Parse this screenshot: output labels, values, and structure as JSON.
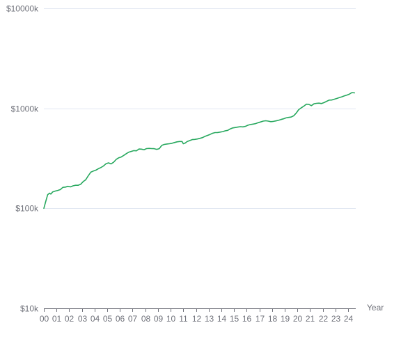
{
  "chart_data": {
    "type": "line",
    "title": "",
    "xlabel": "Year",
    "ylabel": "",
    "y_scale": "log",
    "ylim": [
      10,
      10000
    ],
    "xlim": [
      2000,
      2024.6
    ],
    "grid": true,
    "legend": "none",
    "y_ticks": [
      {
        "value": 10,
        "label": "$10k"
      },
      {
        "value": 100,
        "label": "$100k"
      },
      {
        "value": 1000,
        "label": "$1000k"
      },
      {
        "value": 10000,
        "label": "$10000k"
      }
    ],
    "x_ticks": [
      {
        "value": 2000,
        "label": "00"
      },
      {
        "value": 2001,
        "label": "01"
      },
      {
        "value": 2002,
        "label": "02"
      },
      {
        "value": 2003,
        "label": "03"
      },
      {
        "value": 2004,
        "label": "04"
      },
      {
        "value": 2005,
        "label": "05"
      },
      {
        "value": 2006,
        "label": "06"
      },
      {
        "value": 2007,
        "label": "07"
      },
      {
        "value": 2008,
        "label": "08"
      },
      {
        "value": 2009,
        "label": "09"
      },
      {
        "value": 2010,
        "label": "10"
      },
      {
        "value": 2011,
        "label": "11"
      },
      {
        "value": 2012,
        "label": "12"
      },
      {
        "value": 2013,
        "label": "13"
      },
      {
        "value": 2014,
        "label": "14"
      },
      {
        "value": 2015,
        "label": "15"
      },
      {
        "value": 2016,
        "label": "16"
      },
      {
        "value": 2017,
        "label": "17"
      },
      {
        "value": 2018,
        "label": "18"
      },
      {
        "value": 2019,
        "label": "19"
      },
      {
        "value": 2020,
        "label": "20"
      },
      {
        "value": 2021,
        "label": "21"
      },
      {
        "value": 2022,
        "label": "22"
      },
      {
        "value": 2023,
        "label": "23"
      },
      {
        "value": 2024,
        "label": "24"
      }
    ],
    "series": [
      {
        "color": "#27a85e",
        "points": [
          [
            2000.0,
            100
          ],
          [
            2000.15,
            117
          ],
          [
            2000.3,
            137
          ],
          [
            2000.45,
            142
          ],
          [
            2000.55,
            139
          ],
          [
            2000.7,
            146
          ],
          [
            2000.9,
            149
          ],
          [
            2001.1,
            151
          ],
          [
            2001.3,
            154
          ],
          [
            2001.5,
            162
          ],
          [
            2001.7,
            163
          ],
          [
            2001.9,
            166
          ],
          [
            2002.1,
            164
          ],
          [
            2002.3,
            168
          ],
          [
            2002.5,
            170
          ],
          [
            2002.7,
            170
          ],
          [
            2002.9,
            174
          ],
          [
            2003.1,
            185
          ],
          [
            2003.3,
            193
          ],
          [
            2003.5,
            211
          ],
          [
            2003.7,
            230
          ],
          [
            2003.9,
            236
          ],
          [
            2004.1,
            241
          ],
          [
            2004.3,
            249
          ],
          [
            2004.5,
            256
          ],
          [
            2004.7,
            265
          ],
          [
            2004.9,
            279
          ],
          [
            2005.1,
            285
          ],
          [
            2005.3,
            278
          ],
          [
            2005.5,
            289
          ],
          [
            2005.7,
            308
          ],
          [
            2005.9,
            320
          ],
          [
            2006.1,
            326
          ],
          [
            2006.3,
            338
          ],
          [
            2006.5,
            352
          ],
          [
            2006.7,
            365
          ],
          [
            2006.9,
            371
          ],
          [
            2007.1,
            378
          ],
          [
            2007.3,
            376
          ],
          [
            2007.5,
            392
          ],
          [
            2007.7,
            391
          ],
          [
            2007.9,
            386
          ],
          [
            2008.1,
            396
          ],
          [
            2008.3,
            398
          ],
          [
            2008.5,
            396
          ],
          [
            2008.7,
            395
          ],
          [
            2008.9,
            389
          ],
          [
            2009.1,
            395
          ],
          [
            2009.3,
            426
          ],
          [
            2009.5,
            436
          ],
          [
            2009.7,
            440
          ],
          [
            2009.9,
            443
          ],
          [
            2010.1,
            447
          ],
          [
            2010.3,
            455
          ],
          [
            2010.5,
            462
          ],
          [
            2010.7,
            466
          ],
          [
            2010.9,
            466
          ],
          [
            2011.0,
            443
          ],
          [
            2011.15,
            450
          ],
          [
            2011.3,
            465
          ],
          [
            2011.5,
            476
          ],
          [
            2011.7,
            487
          ],
          [
            2011.9,
            489
          ],
          [
            2012.1,
            494
          ],
          [
            2012.3,
            501
          ],
          [
            2012.5,
            509
          ],
          [
            2012.7,
            524
          ],
          [
            2012.9,
            536
          ],
          [
            2013.1,
            548
          ],
          [
            2013.3,
            563
          ],
          [
            2013.5,
            572
          ],
          [
            2013.7,
            573
          ],
          [
            2013.9,
            579
          ],
          [
            2014.1,
            585
          ],
          [
            2014.3,
            596
          ],
          [
            2014.5,
            602
          ],
          [
            2014.7,
            623
          ],
          [
            2014.9,
            637
          ],
          [
            2015.1,
            643
          ],
          [
            2015.3,
            649
          ],
          [
            2015.5,
            656
          ],
          [
            2015.7,
            653
          ],
          [
            2015.9,
            661
          ],
          [
            2016.1,
            678
          ],
          [
            2016.3,
            689
          ],
          [
            2016.5,
            696
          ],
          [
            2016.7,
            704
          ],
          [
            2016.9,
            718
          ],
          [
            2017.1,
            731
          ],
          [
            2017.3,
            745
          ],
          [
            2017.5,
            752
          ],
          [
            2017.7,
            745
          ],
          [
            2017.9,
            736
          ],
          [
            2018.1,
            741
          ],
          [
            2018.3,
            749
          ],
          [
            2018.5,
            759
          ],
          [
            2018.7,
            773
          ],
          [
            2018.9,
            786
          ],
          [
            2019.1,
            802
          ],
          [
            2019.3,
            811
          ],
          [
            2019.5,
            818
          ],
          [
            2019.7,
            842
          ],
          [
            2019.9,
            895
          ],
          [
            2020.1,
            969
          ],
          [
            2020.3,
            1012
          ],
          [
            2020.5,
            1050
          ],
          [
            2020.7,
            1100
          ],
          [
            2020.9,
            1096
          ],
          [
            2021.1,
            1064
          ],
          [
            2021.3,
            1110
          ],
          [
            2021.5,
            1121
          ],
          [
            2021.7,
            1128
          ],
          [
            2021.9,
            1117
          ],
          [
            2022.1,
            1141
          ],
          [
            2022.3,
            1176
          ],
          [
            2022.5,
            1209
          ],
          [
            2022.7,
            1212
          ],
          [
            2022.9,
            1233
          ],
          [
            2023.1,
            1254
          ],
          [
            2023.3,
            1279
          ],
          [
            2023.5,
            1305
          ],
          [
            2023.7,
            1332
          ],
          [
            2023.9,
            1358
          ],
          [
            2024.1,
            1389
          ],
          [
            2024.3,
            1437
          ],
          [
            2024.5,
            1429
          ]
        ]
      }
    ]
  }
}
